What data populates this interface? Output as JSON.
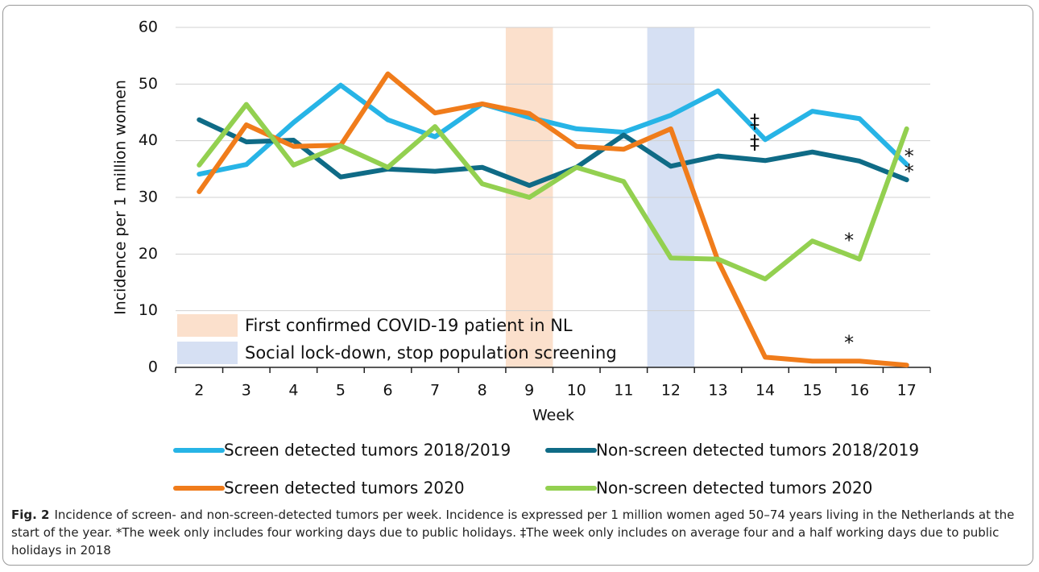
{
  "chart_data": {
    "type": "line",
    "x_label": "Week",
    "y_label": "Incidence per 1 million women",
    "categories": [
      "2",
      "3",
      "4",
      "5",
      "6",
      "7",
      "8",
      "9",
      "10",
      "11",
      "12",
      "13",
      "14",
      "15",
      "16",
      "17"
    ],
    "series": [
      {
        "name": "Screen detected tumors 2018/2019",
        "color": "#27b4e6",
        "values": [
          34.1,
          35.8,
          43.2,
          49.8,
          43.7,
          40.7,
          46.5,
          44.1,
          42.1,
          41.5,
          44.5,
          48.8,
          40.2,
          45.2,
          43.9,
          35.8
        ]
      },
      {
        "name": "Non-screen detected tumors 2018/2019",
        "color": "#0f6b86",
        "values": [
          43.7,
          39.8,
          40.1,
          33.6,
          35.0,
          34.6,
          35.3,
          32.1,
          35.3,
          41.0,
          35.5,
          37.3,
          36.5,
          38.0,
          36.4,
          33.1
        ]
      },
      {
        "name": "Screen detected tumors 2020",
        "color": "#f07c1b",
        "values": [
          31.0,
          42.8,
          39.0,
          39.2,
          51.8,
          44.9,
          46.5,
          44.8,
          39.0,
          38.5,
          42.1,
          18.8,
          1.8,
          1.1,
          1.1,
          0.4
        ]
      },
      {
        "name": "Non-screen detected tumors 2020",
        "color": "#93d050",
        "values": [
          35.7,
          46.4,
          35.7,
          39.1,
          35.3,
          42.5,
          32.4,
          30.0,
          35.3,
          32.8,
          19.3,
          19.1,
          15.6,
          22.3,
          19.1,
          42.1
        ]
      }
    ],
    "highlights": [
      {
        "category": "9",
        "label": "First confirmed COVID-19 patient in NL",
        "color": "#fbe0cc"
      },
      {
        "category": "12",
        "label": "Social lock-down, stop population screening",
        "color": "#d6e0f3"
      }
    ],
    "annotations": [
      {
        "text": "‡",
        "category": "14",
        "series": "Screen detected tumors 2018/2019"
      },
      {
        "text": "‡",
        "category": "14",
        "series": "Non-screen detected tumors 2018/2019"
      },
      {
        "text": "*",
        "category": "17",
        "series": "Screen detected tumors 2018/2019"
      },
      {
        "text": "*",
        "category": "17",
        "series": "Non-screen detected tumors 2018/2019"
      },
      {
        "text": "*",
        "category": "16",
        "series": "Non-screen detected tumors 2020"
      },
      {
        "text": "*",
        "category": "16",
        "series": "Screen detected tumors 2020"
      }
    ],
    "ylim": [
      0,
      60
    ],
    "yticks": [
      0,
      10,
      20,
      30,
      40,
      50,
      60
    ],
    "grid": true
  },
  "caption_label": "Fig. 2",
  "caption": "Incidence of screen- and non-screen-detected tumors per week. Incidence is expressed per 1 million women aged 50–74 years living in the Netherlands at the start of the year. *The week only includes four working days due to public holidays. ‡The week only includes on average four and a half working days due to public holidays in 2018"
}
